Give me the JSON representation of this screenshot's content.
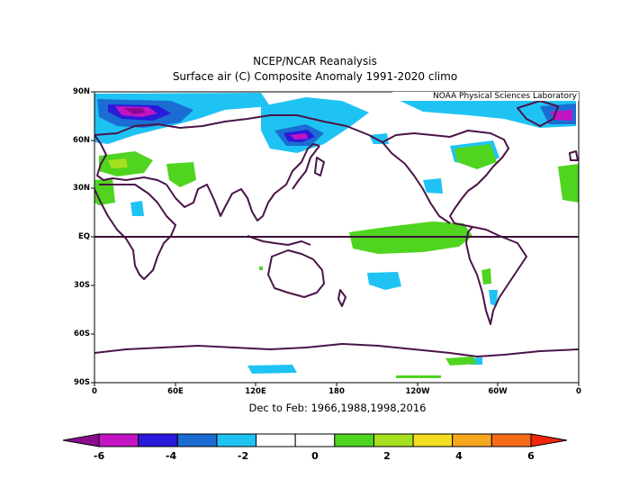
{
  "title": "NCEP/NCAR Reanalysis",
  "subtitle": "Surface air (C) Composite Anomaly 1991-2020 climo",
  "credit": "NOAA Physical Sciences Laboratory",
  "period_label": "Dec to Feb: 1966,1988,1998,2016",
  "y_axis_labels": [
    "90N",
    "60N",
    "30N",
    "EQ",
    "30S",
    "60S",
    "90S"
  ],
  "x_axis_labels": [
    "0",
    "60E",
    "120E",
    "180",
    "120W",
    "60W",
    "0"
  ],
  "colorbar": {
    "labels": [
      "-6",
      "-4",
      "-2",
      "0",
      "2",
      "4",
      "6"
    ],
    "colors": [
      "#8b0b8f",
      "#c314c3",
      "#2a1adb",
      "#1c6dd3",
      "#1fc3f3",
      "#ffffff",
      "#ffffff",
      "#4fd41f",
      "#a6e01e",
      "#f2dd1e",
      "#f7a71f",
      "#f56b16",
      "#f2260d"
    ]
  },
  "colors": {
    "coastline": "#4a1448",
    "equator": "#3b0f37"
  }
}
